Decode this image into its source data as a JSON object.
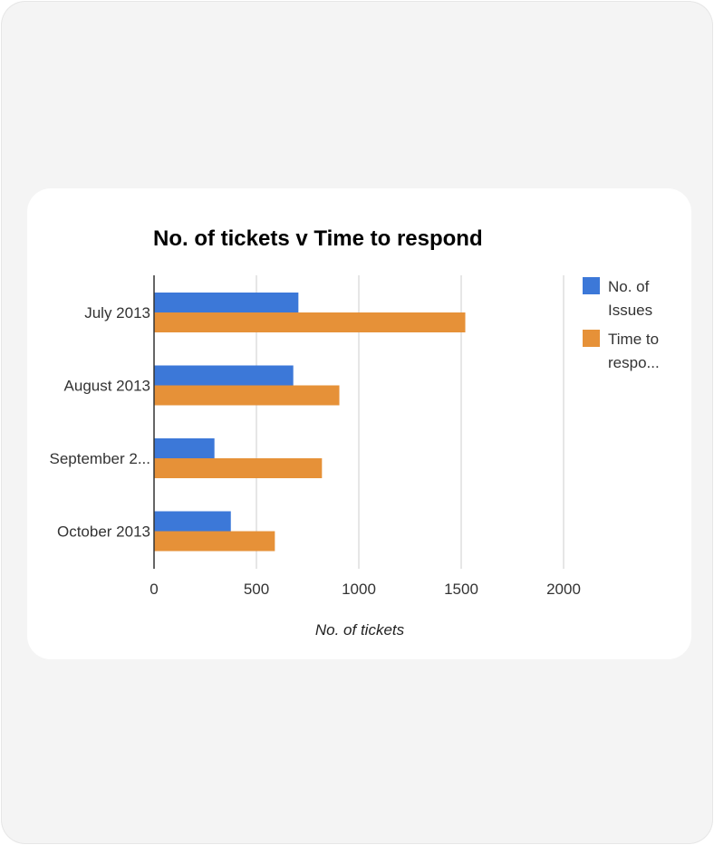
{
  "chart_data": {
    "type": "bar",
    "orientation": "horizontal",
    "title": "No. of tickets v Time to respond",
    "xlabel": "No. of tickets",
    "ylabel": "",
    "categories": [
      "July 2013",
      "August 2013",
      "September 2...",
      "October 2013"
    ],
    "series": [
      {
        "name": "No. of Issues",
        "legend_lines": [
          "No. of",
          "Issues"
        ],
        "color": "#3c78d8",
        "values": [
          705,
          680,
          295,
          375
        ]
      },
      {
        "name": "Time to respo...",
        "legend_lines": [
          "Time to",
          "respo..."
        ],
        "color": "#e69138",
        "values": [
          1520,
          905,
          820,
          590
        ]
      }
    ],
    "xlim": [
      0,
      2000
    ],
    "x_ticks": [
      0,
      500,
      1000,
      1500,
      2000
    ],
    "x_tick_labels": [
      "0",
      "500",
      "1000",
      "1500",
      "2000"
    ],
    "grid": true,
    "legend_position": "right"
  }
}
